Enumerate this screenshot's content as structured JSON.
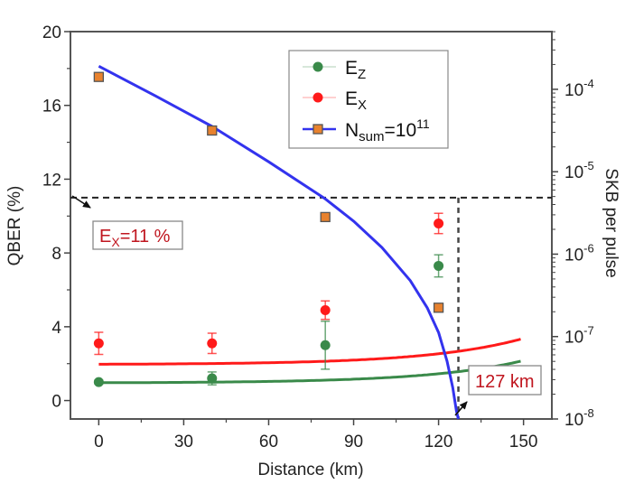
{
  "chart_data": {
    "type": "line",
    "title": "",
    "xlabel": "Distance (km)",
    "ylabel_left": "QBER (%)",
    "ylabel_right": "SKB per pulse",
    "xlim": [
      -10,
      160
    ],
    "ylim_left": [
      -1,
      20
    ],
    "ylim_right_log10": [
      -8,
      -3.3
    ],
    "x_ticks": [
      "0",
      "30",
      "60",
      "90",
      "120",
      "150"
    ],
    "x_tick_values": [
      0,
      30,
      60,
      90,
      120,
      150
    ],
    "y_left_ticks": [
      "0",
      "4",
      "8",
      "12",
      "16",
      "20"
    ],
    "y_left_tick_values": [
      0,
      4,
      8,
      12,
      16,
      20
    ],
    "y_right_ticks": [
      {
        "base": "10",
        "exp": "-8",
        "value": -8
      },
      {
        "base": "10",
        "exp": "-7",
        "value": -7
      },
      {
        "base": "10",
        "exp": "-6",
        "value": -6
      },
      {
        "base": "10",
        "exp": "-5",
        "value": -5
      },
      {
        "base": "10",
        "exp": "-4",
        "value": -4
      }
    ],
    "series": [
      {
        "name": "E_Z",
        "label_main": "E",
        "label_sub": "Z",
        "label_sup": "",
        "axis": "left",
        "color": "#3a8a4a",
        "points": [
          {
            "x": 0,
            "y": 1.0,
            "err": 0.1
          },
          {
            "x": 40,
            "y": 1.2,
            "err": 0.35
          },
          {
            "x": 80,
            "y": 3.0,
            "err": 1.3
          },
          {
            "x": 120,
            "y": 7.3,
            "err": 0.6
          }
        ],
        "fit": {
          "a": 0.95,
          "b": 0.06,
          "x0": 48,
          "kx": 0.0295,
          "xmin": 0,
          "xmax": 149
        }
      },
      {
        "name": "E_X",
        "label_main": "E",
        "label_sub": "X",
        "label_sup": "",
        "axis": "left",
        "color": "#ff1a1a",
        "points": [
          {
            "x": 0,
            "y": 3.1,
            "err": 0.6
          },
          {
            "x": 40,
            "y": 3.1,
            "err": 0.55
          },
          {
            "x": 80,
            "y": 4.9,
            "err": 0.5
          },
          {
            "x": 120,
            "y": 9.6,
            "err": 0.55
          }
        ],
        "fit": {
          "a": 1.95,
          "b": 0.07,
          "x0": 48,
          "kx": 0.0295,
          "xmin": 0,
          "xmax": 149
        }
      },
      {
        "name": "N_sum=10^11",
        "label_main": "N",
        "label_sub": "sum",
        "label_mid": "=10",
        "label_sup": "11",
        "axis": "right",
        "color": "#3333ee",
        "marker_color": "#e8822e",
        "points": [
          {
            "x": 0,
            "log10y": -3.85
          },
          {
            "x": 40,
            "log10y": -4.5
          },
          {
            "x": 80,
            "log10y": -5.55
          },
          {
            "x": 120,
            "log10y": -6.65
          }
        ],
        "curve": [
          {
            "x": 0,
            "log10y": -3.72
          },
          {
            "x": 20,
            "log10y": -4.08
          },
          {
            "x": 40,
            "log10y": -4.45
          },
          {
            "x": 60,
            "log10y": -4.88
          },
          {
            "x": 80,
            "log10y": -5.33
          },
          {
            "x": 90,
            "log10y": -5.6
          },
          {
            "x": 100,
            "log10y": -5.92
          },
          {
            "x": 110,
            "log10y": -6.32
          },
          {
            "x": 116,
            "log10y": -6.65
          },
          {
            "x": 120,
            "log10y": -6.95
          },
          {
            "x": 123,
            "log10y": -7.3
          },
          {
            "x": 125,
            "log10y": -7.62
          },
          {
            "x": 126.3,
            "log10y": -7.9
          },
          {
            "x": 127,
            "log10y": -8.0
          }
        ]
      }
    ],
    "threshold": {
      "y": 11,
      "x_cross": 127
    },
    "annotations": [
      {
        "main": "E",
        "sub": "X",
        "rest": "=11 %"
      },
      {
        "text": "127 km"
      }
    ],
    "legend": "top-center",
    "grid": false
  }
}
